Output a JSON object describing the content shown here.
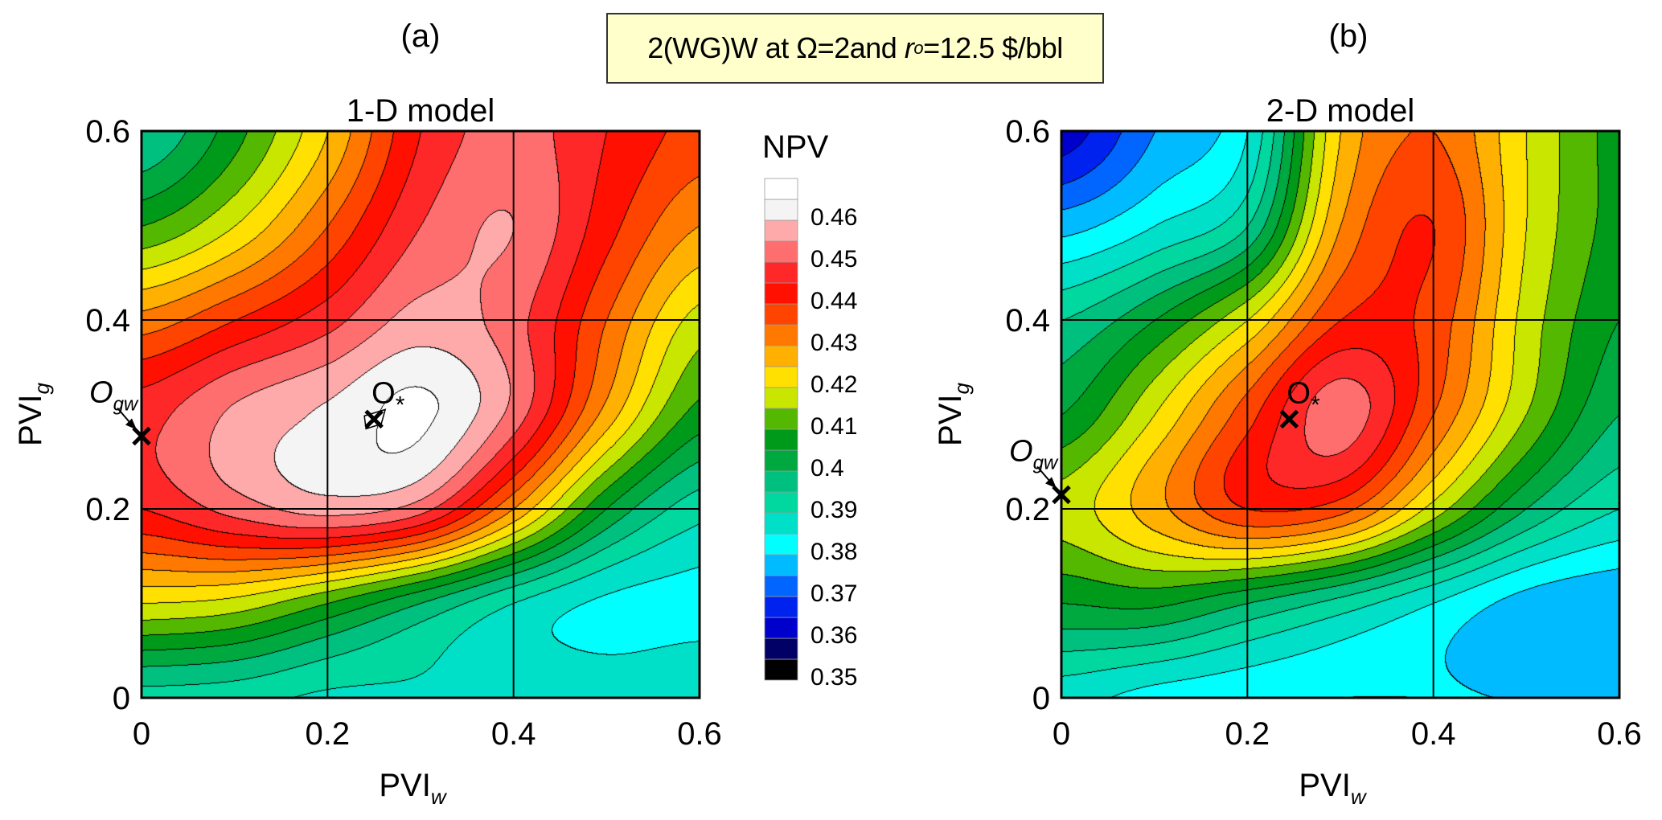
{
  "header": {
    "title_box": {
      "prefix": "2(WG)W at ",
      "omega": "Ω=2",
      "and": " and ",
      "r": "r",
      "r_sub": "o",
      "suffix": "=12.5 $/bbl"
    }
  },
  "colorbar": {
    "title": "NPV",
    "levels": [
      0.35,
      0.355,
      0.36,
      0.365,
      0.37,
      0.375,
      0.38,
      0.385,
      0.39,
      0.395,
      0.4,
      0.405,
      0.41,
      0.415,
      0.42,
      0.425,
      0.43,
      0.435,
      0.44,
      0.445,
      0.45,
      0.455,
      0.46,
      0.465,
      0.47
    ],
    "colors": [
      "#000000",
      "#000066",
      "#0000cc",
      "#0022ee",
      "#0066ff",
      "#00bbff",
      "#00ffff",
      "#00e0c8",
      "#00d8a0",
      "#00c080",
      "#00a840",
      "#009a1a",
      "#55b800",
      "#c8e600",
      "#ffe000",
      "#ffb000",
      "#ff7800",
      "#ff4400",
      "#ff1000",
      "#ff2828",
      "#ff6e6e",
      "#ffaaaa",
      "#f4f4f4",
      "#ffffff"
    ],
    "tick_labels": [
      "0.46",
      "0.45",
      "0.44",
      "0.43",
      "0.42",
      "0.41",
      "0.4",
      "0.39",
      "0.38",
      "0.37",
      "0.36",
      "0.35"
    ]
  },
  "chart_data": [
    {
      "type": "heatmap",
      "panel_label": "(a)",
      "title": "1-D model",
      "xlabel": "PVI",
      "xlabel_sub": "w",
      "ylabel": "PVI",
      "ylabel_sub": "g",
      "xlim": [
        0,
        0.6
      ],
      "ylim": [
        0,
        0.6
      ],
      "xticks": [
        "0",
        "0.2",
        "0.4",
        "0.6"
      ],
      "yticks": [
        "0",
        "0.2",
        "0.4",
        "0.6"
      ],
      "grid": true,
      "x": [
        0,
        0.1,
        0.2,
        0.3,
        0.4,
        0.5,
        0.6
      ],
      "y": [
        0,
        0.1,
        0.2,
        0.3,
        0.4,
        0.5,
        0.6
      ],
      "z_npv": [
        [
          0.393,
          0.392,
          0.389,
          0.389,
          0.389,
          0.388,
          0.39
        ],
        [
          0.42,
          0.418,
          0.41,
          0.4,
          0.39,
          0.384,
          0.383
        ],
        [
          0.445,
          0.452,
          0.457,
          0.452,
          0.43,
          0.405,
          0.392
        ],
        [
          0.448,
          0.456,
          0.461,
          0.466,
          0.453,
          0.428,
          0.408
        ],
        [
          0.432,
          0.44,
          0.448,
          0.457,
          0.452,
          0.435,
          0.418
        ],
        [
          0.41,
          0.42,
          0.435,
          0.45,
          0.455,
          0.442,
          0.43
        ],
        [
          0.395,
          0.408,
          0.425,
          0.445,
          0.452,
          0.445,
          0.438
        ]
      ],
      "markers": [
        {
          "label": "O",
          "label_sub": "gw",
          "x": 0.0,
          "y": 0.277,
          "symbol": "x",
          "arrow": true
        },
        {
          "label": "O",
          "label_sub": "*",
          "x": 0.25,
          "y": 0.295,
          "symbol": "x",
          "arrow": false
        }
      ]
    },
    {
      "type": "heatmap",
      "panel_label": "(b)",
      "title": "2-D model",
      "xlabel": "PVI",
      "xlabel_sub": "w",
      "ylabel": "PVI",
      "ylabel_sub": "g",
      "xlim": [
        0,
        0.6
      ],
      "ylim": [
        0,
        0.6
      ],
      "xticks": [
        "0",
        "0.2",
        "0.4",
        "0.6"
      ],
      "yticks": [
        "0",
        "0.2",
        "0.4",
        "0.6"
      ],
      "grid": true,
      "x": [
        0,
        0.1,
        0.2,
        0.3,
        0.4,
        0.5,
        0.6
      ],
      "y": [
        0,
        0.1,
        0.2,
        0.3,
        0.4,
        0.5,
        0.6
      ],
      "z_npv": [
        [
          0.387,
          0.383,
          0.381,
          0.38,
          0.38,
          0.38,
          0.38
        ],
        [
          0.405,
          0.406,
          0.4,
          0.393,
          0.385,
          0.378,
          0.376
        ],
        [
          0.417,
          0.428,
          0.44,
          0.437,
          0.418,
          0.4,
          0.39
        ],
        [
          0.405,
          0.42,
          0.438,
          0.453,
          0.435,
          0.415,
          0.4
        ],
        [
          0.395,
          0.405,
          0.42,
          0.44,
          0.438,
          0.418,
          0.405
        ],
        [
          0.378,
          0.385,
          0.395,
          0.43,
          0.44,
          0.42,
          0.408
        ],
        [
          0.362,
          0.375,
          0.385,
          0.425,
          0.435,
          0.42,
          0.408
        ]
      ],
      "markers": [
        {
          "label": "O",
          "label_sub": "gw",
          "x": 0.0,
          "y": 0.215,
          "symbol": "x",
          "arrow": true
        },
        {
          "label": "O",
          "label_sub": "*",
          "x": 0.245,
          "y": 0.295,
          "symbol": "x",
          "arrow": false
        }
      ]
    }
  ]
}
